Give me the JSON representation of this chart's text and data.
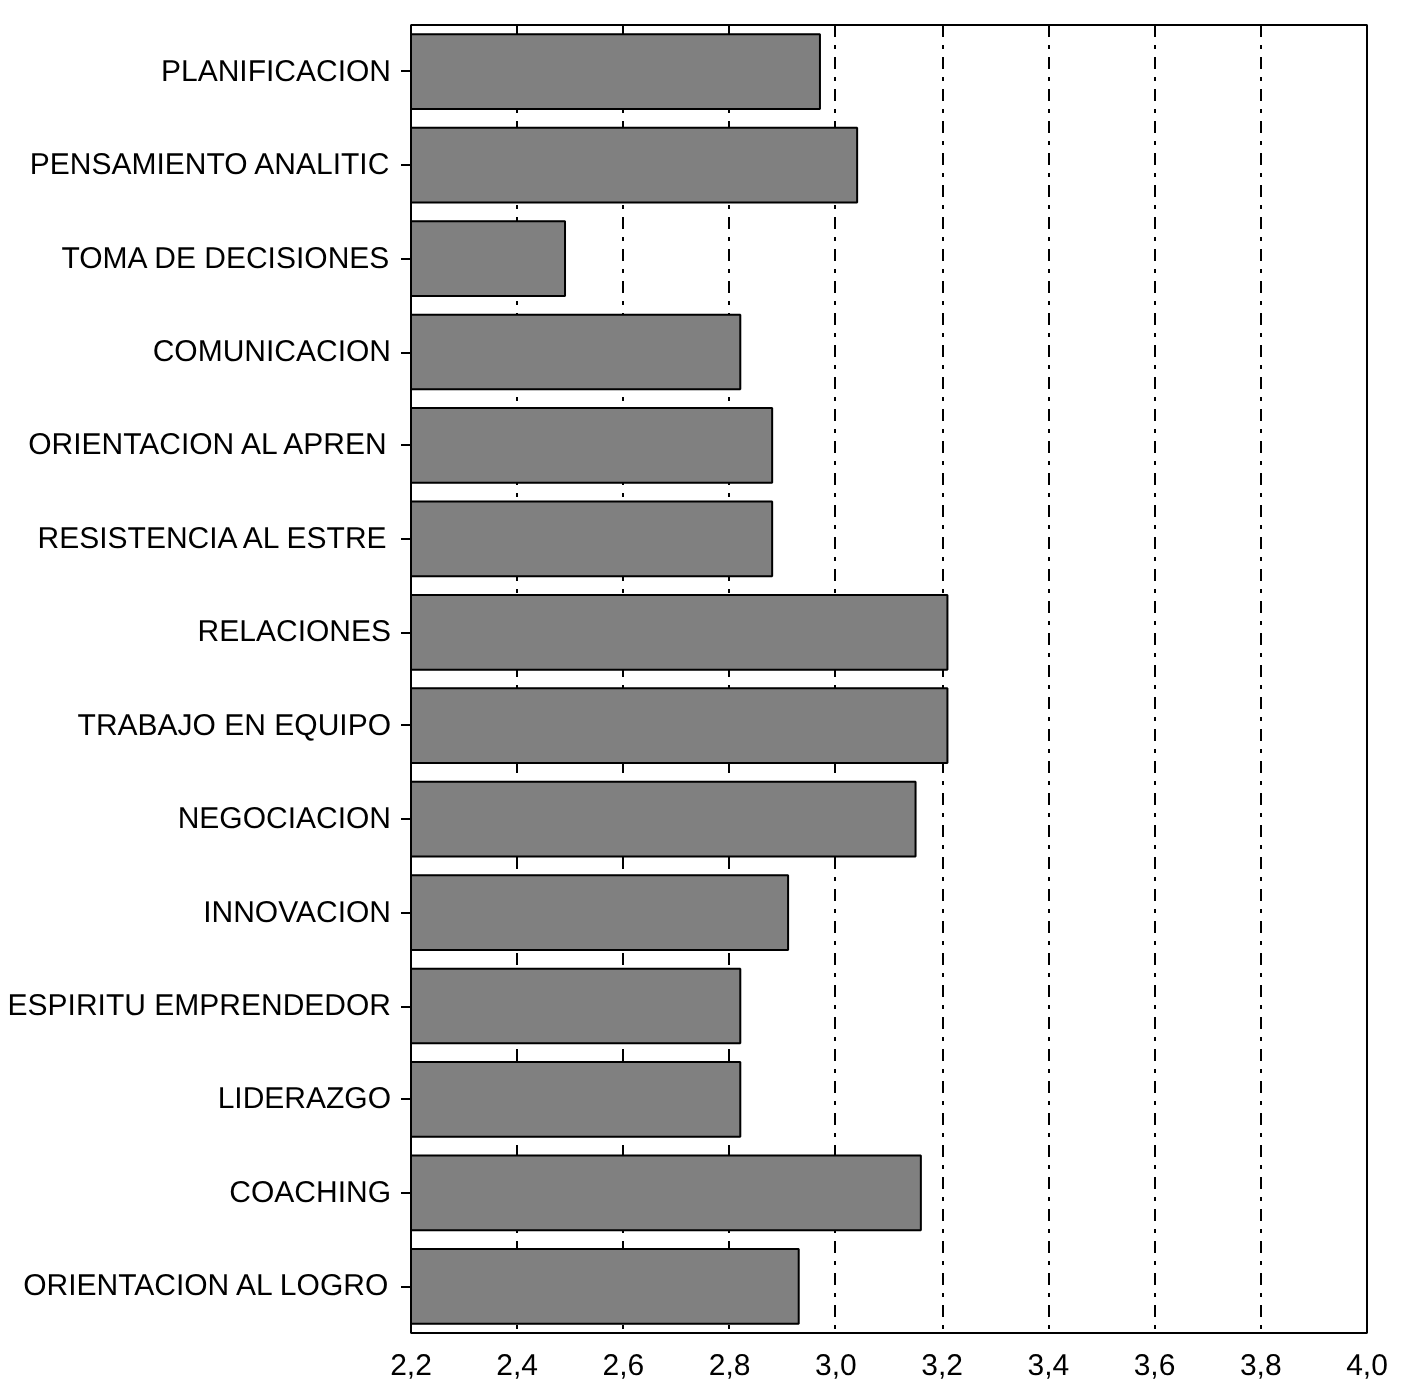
{
  "chart_data": {
    "type": "bar",
    "orientation": "horizontal",
    "categories": [
      "PLANIFICACION",
      "PENSAMIENTO ANALITIC",
      "TOMA DE DECISIONES",
      "COMUNICACION",
      "ORIENTACION AL APREN",
      "RESISTENCIA AL ESTRE",
      "RELACIONES",
      "TRABAJO EN EQUIPO",
      "NEGOCIACION",
      "INNOVACION",
      "ESPIRITU EMPRENDEDOR",
      "LIDERAZGO",
      "COACHING",
      "ORIENTACION AL LOGRO"
    ],
    "series": [
      {
        "color": "#808080",
        "values": [
          2.97,
          3.04,
          2.49,
          2.82,
          2.88,
          2.88,
          3.21,
          3.21,
          3.15,
          2.91,
          2.82,
          2.82,
          3.16,
          2.93
        ]
      }
    ],
    "xlim": [
      2.2,
      4.0
    ],
    "xticks": [
      {
        "value": 2.2,
        "label": "2,2"
      },
      {
        "value": 2.4,
        "label": "2,4"
      },
      {
        "value": 2.6,
        "label": "2,6"
      },
      {
        "value": 2.8,
        "label": "2,8"
      },
      {
        "value": 3.0,
        "label": "3,0"
      },
      {
        "value": 3.2,
        "label": "3,2"
      },
      {
        "value": 3.4,
        "label": "3,4"
      },
      {
        "value": 3.6,
        "label": "3,6"
      },
      {
        "value": 3.8,
        "label": "3,8"
      },
      {
        "value": 4.0,
        "label": "4,0"
      }
    ],
    "grid": "x",
    "line_style": "dashdot"
  }
}
